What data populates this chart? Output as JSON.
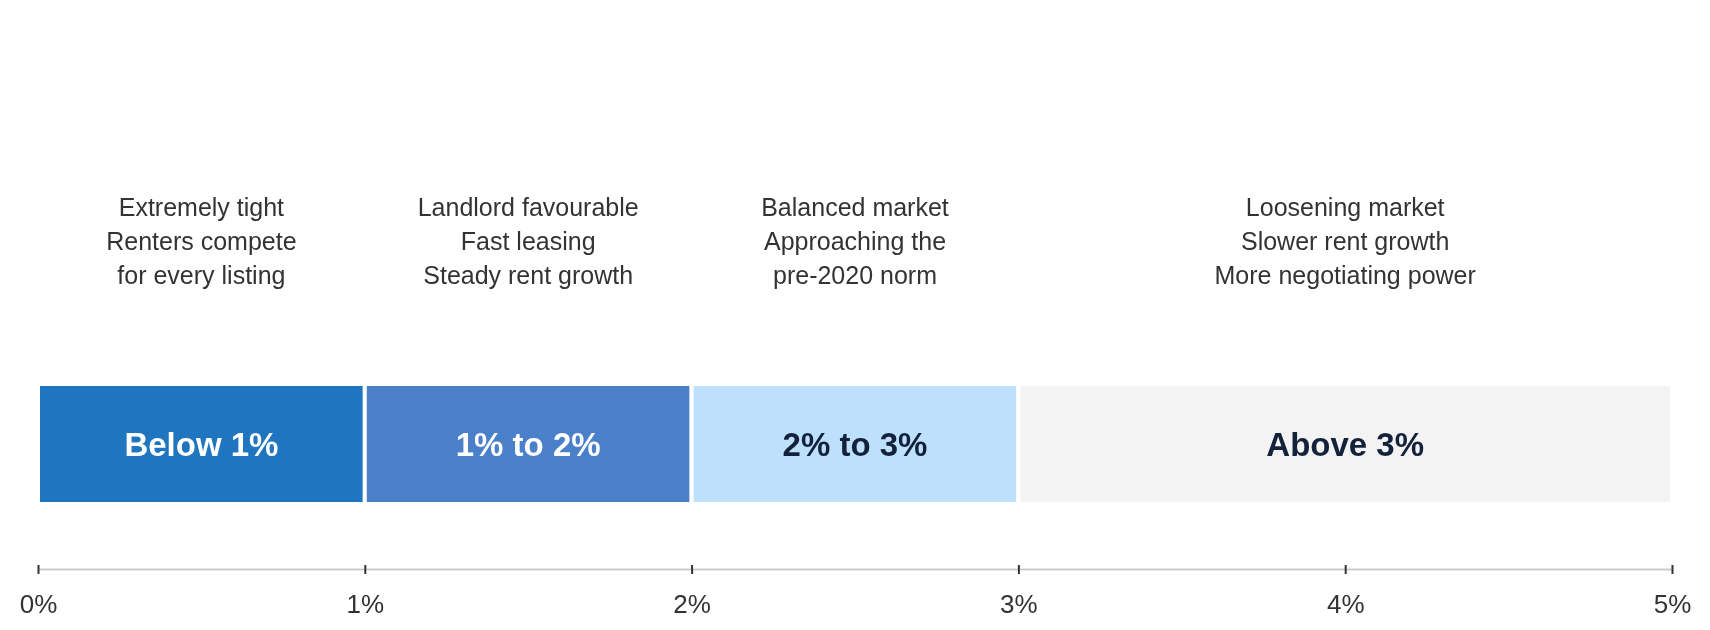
{
  "chart_data": {
    "type": "bar",
    "orientation": "horizontal",
    "stacked": true,
    "categories": [
      null
    ],
    "series": [
      {
        "name": "Below 1%",
        "color": "#1f75c0",
        "values": [
          1
        ]
      },
      {
        "name": "1% to 2%",
        "color": "#4a80ca",
        "values": [
          1
        ]
      },
      {
        "name": "2% to 3%",
        "color": "#bde1fc",
        "values": [
          1
        ]
      },
      {
        "name": "Above 3%",
        "color": "#f3f3f3",
        "values": [
          2
        ]
      }
    ],
    "xlim": [
      0,
      5
    ],
    "xticks": [
      {
        "value": 0,
        "label": "0%"
      },
      {
        "value": 1,
        "label": "1%"
      },
      {
        "value": 2,
        "label": "2%"
      },
      {
        "value": 3,
        "label": "3%"
      },
      {
        "value": 4,
        "label": "4%"
      },
      {
        "value": 5,
        "label": "5%"
      }
    ],
    "annotations": [
      "Extremely tight\nRenters compete\nfor every listing",
      "Landlord favourable\nFast leasing\nSteady rent growth",
      "Balanced market\nApproaching the\npre-2020 norm",
      "Loosening market\nSlower rent growth\nMore negotiating power"
    ],
    "grid": false
  }
}
